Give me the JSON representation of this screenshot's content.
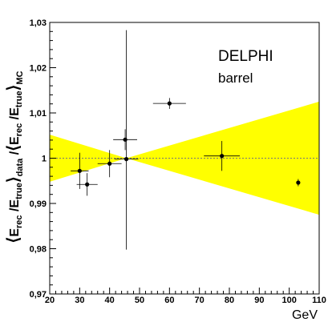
{
  "chart_data": {
    "type": "scatter",
    "title": "",
    "xlabel": "GeV",
    "ylabel": {
      "numerator": {
        "a": "E",
        "a_sub": "rec",
        "b": "E",
        "b_sub": "true",
        "outer_sub": "data"
      },
      "denominator": {
        "a": "E",
        "a_sub": "rec",
        "b": "E",
        "b_sub": "true",
        "outer_sub": "MC"
      }
    },
    "xlim": [
      20,
      110
    ],
    "ylim": [
      0.97,
      1.03
    ],
    "x_ticks": [
      "20",
      "30",
      "40",
      "50",
      "60",
      "70",
      "80",
      "90",
      "100",
      "110"
    ],
    "y_ticks": [
      "0,97",
      "0,98",
      "0,99",
      "1",
      "1,01",
      "1,02",
      "1,03"
    ],
    "y_tick_values": [
      0.97,
      0.98,
      0.99,
      1.0,
      1.01,
      1.02,
      1.03
    ],
    "reference_line": {
      "y": 1.0,
      "style": "dashed"
    },
    "band": {
      "color": "#ffff00",
      "pivot_x": 45.6,
      "left": {
        "x": 20,
        "ylow": 0.9948,
        "yhigh": 1.0052
      },
      "right": {
        "x": 110,
        "ylow": 0.9875,
        "yhigh": 1.0125
      }
    },
    "points": [
      {
        "x": 30.0,
        "y": 0.9972,
        "xerr": 3,
        "yerr": 0.004
      },
      {
        "x": 32.5,
        "y": 0.9942,
        "xerr": 3.5,
        "yerr": 0.0025
      },
      {
        "x": 40.0,
        "y": 0.9988,
        "xerr": 4,
        "yerr": 0.003
      },
      {
        "x": 45.2,
        "y": 1.0041,
        "xerr": 4,
        "yerr": 0.0023
      },
      {
        "x": 45.6,
        "y": 0.9998,
        "xerr": 4,
        "yerr": 0.0285,
        "yerr_low": 0.02
      },
      {
        "x": 60.0,
        "y": 1.0121,
        "xerr": 5.5,
        "yerr": 0.0012
      },
      {
        "x": 77.5,
        "y": 1.0005,
        "xerr": 6,
        "yerr": 0.0033
      },
      {
        "x": 103.0,
        "y": 0.9946,
        "xerr": 0,
        "yerr": 0.0008
      }
    ],
    "annotations": [
      "DELPHI",
      "barrel"
    ],
    "grid": false,
    "legend": "none"
  }
}
